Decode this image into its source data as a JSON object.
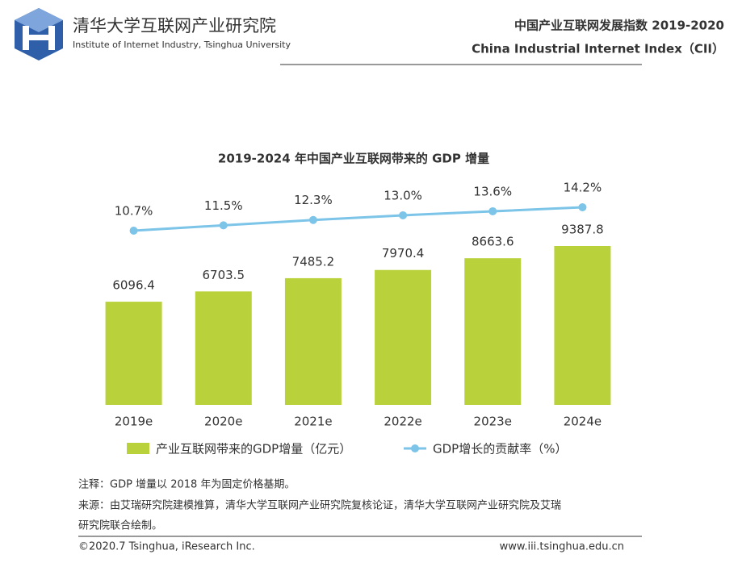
{
  "header": {
    "org_cn": "清华大学互联网产业研究院",
    "org_en": "Institute of Internet Industry, Tsinghua University",
    "report_cn": "中国产业互联网发展指数 2019-2020",
    "report_en": "China Industrial Internet Index（CII）"
  },
  "chart_data": {
    "type": "bar",
    "title": "2019-2024 年中国产业互联网带来的 GDP 增量",
    "categories": [
      "2019e",
      "2020e",
      "2021e",
      "2022e",
      "2023e",
      "2024e"
    ],
    "series": [
      {
        "name": "产业互联网带来的GDP增量（亿元）",
        "type": "bar",
        "color": "#b9d23b",
        "values": [
          6096.4,
          6703.5,
          7485.2,
          7970.4,
          8663.6,
          9387.8
        ]
      },
      {
        "name": "GDP增长的贡献率（%）",
        "type": "line",
        "color": "#7cc4e8",
        "values": [
          10.7,
          11.5,
          12.3,
          13.0,
          13.6,
          14.2
        ],
        "value_labels": [
          "10.7%",
          "11.5%",
          "12.3%",
          "13.0%",
          "13.6%",
          "14.2%"
        ]
      }
    ]
  },
  "notes": [
    "注释：GDP 增量以 2018 年为固定价格基期。",
    "来源：由艾瑞研究院建模推算，清华大学互联网产业研究院复核论证，清华大学互联网产业研究院及艾瑞",
    "研究院联合绘制。"
  ],
  "footer": {
    "copyright": "©2020.7 Tsinghua, iResearch Inc.",
    "url": "www.iii.tsinghua.edu.cn"
  }
}
